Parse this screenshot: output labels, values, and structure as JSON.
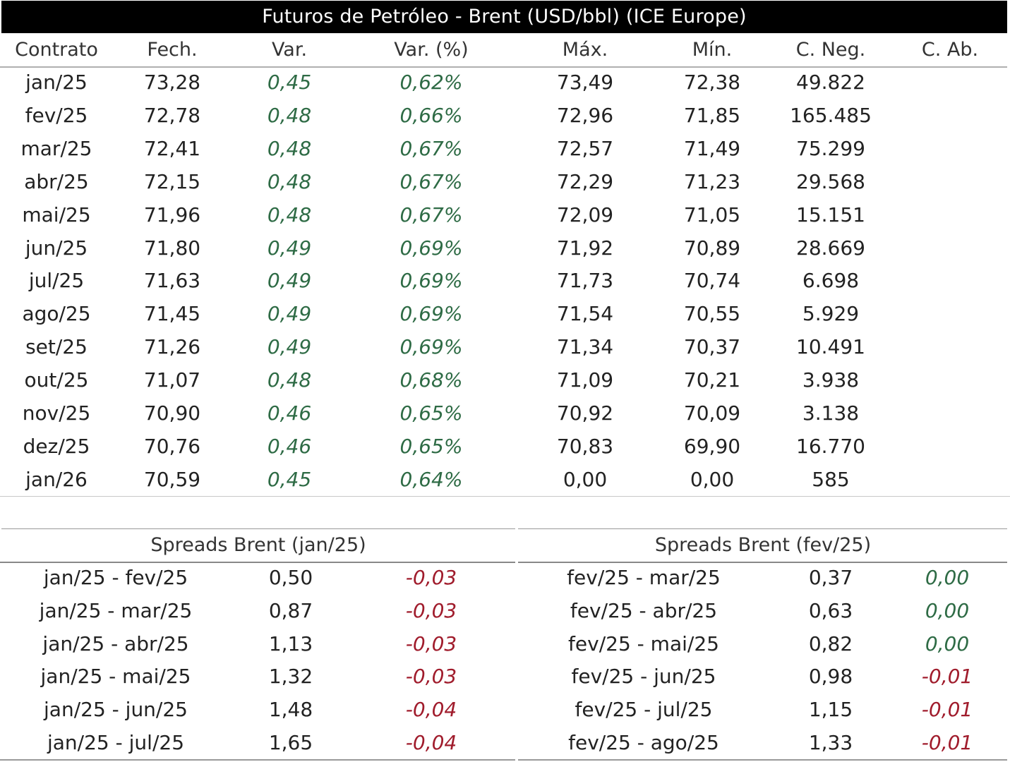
{
  "title": "Futuros de Petróleo - Brent (USD/bbl) (ICE Europe)",
  "colors": {
    "positive": "#2e6b45",
    "negative": "#a01c2c",
    "title_bg": "#000000"
  },
  "main_table": {
    "columns": [
      "Contrato",
      "Fech.",
      "Var.",
      "Var. (%)",
      "Máx.",
      "Mín.",
      "C. Neg.",
      "C. Ab."
    ],
    "rows": [
      [
        "jan/25",
        "73,28",
        "0,45",
        "0,62%",
        "73,49",
        "72,38",
        "49.822",
        ""
      ],
      [
        "fev/25",
        "72,78",
        "0,48",
        "0,66%",
        "72,96",
        "71,85",
        "165.485",
        ""
      ],
      [
        "mar/25",
        "72,41",
        "0,48",
        "0,67%",
        "72,57",
        "71,49",
        "75.299",
        ""
      ],
      [
        "abr/25",
        "72,15",
        "0,48",
        "0,67%",
        "72,29",
        "71,23",
        "29.568",
        ""
      ],
      [
        "mai/25",
        "71,96",
        "0,48",
        "0,67%",
        "72,09",
        "71,05",
        "15.151",
        ""
      ],
      [
        "jun/25",
        "71,80",
        "0,49",
        "0,69%",
        "71,92",
        "70,89",
        "28.669",
        ""
      ],
      [
        "jul/25",
        "71,63",
        "0,49",
        "0,69%",
        "71,73",
        "70,74",
        "6.698",
        ""
      ],
      [
        "ago/25",
        "71,45",
        "0,49",
        "0,69%",
        "71,54",
        "70,55",
        "5.929",
        ""
      ],
      [
        "set/25",
        "71,26",
        "0,49",
        "0,69%",
        "71,34",
        "70,37",
        "10.491",
        ""
      ],
      [
        "out/25",
        "71,07",
        "0,48",
        "0,68%",
        "71,09",
        "70,21",
        "3.938",
        ""
      ],
      [
        "nov/25",
        "70,90",
        "0,46",
        "0,65%",
        "70,92",
        "70,09",
        "3.138",
        ""
      ],
      [
        "dez/25",
        "70,76",
        "0,46",
        "0,65%",
        "70,83",
        "69,90",
        "16.770",
        ""
      ],
      [
        "jan/26",
        "70,59",
        "0,45",
        "0,64%",
        "0,00",
        "0,00",
        "585",
        ""
      ]
    ]
  },
  "spreads_left": {
    "title": "Spreads Brent (jan/25)",
    "rows": [
      [
        "jan/25 - fev/25",
        "0,50",
        "-0,03"
      ],
      [
        "jan/25 - mar/25",
        "0,87",
        "-0,03"
      ],
      [
        "jan/25 - abr/25",
        "1,13",
        "-0,03"
      ],
      [
        "jan/25 - mai/25",
        "1,32",
        "-0,03"
      ],
      [
        "jan/25 - jun/25",
        "1,48",
        "-0,04"
      ],
      [
        "jan/25 - jul/25",
        "1,65",
        "-0,04"
      ]
    ]
  },
  "spreads_right": {
    "title": "Spreads Brent (fev/25)",
    "rows": [
      [
        "fev/25 - mar/25",
        "0,37",
        "0,00"
      ],
      [
        "fev/25 - abr/25",
        "0,63",
        "0,00"
      ],
      [
        "fev/25 - mai/25",
        "0,82",
        "0,00"
      ],
      [
        "fev/25 - jun/25",
        "0,98",
        "-0,01"
      ],
      [
        "fev/25 - jul/25",
        "1,15",
        "-0,01"
      ],
      [
        "fev/25 - ago/25",
        "1,33",
        "-0,01"
      ]
    ]
  }
}
